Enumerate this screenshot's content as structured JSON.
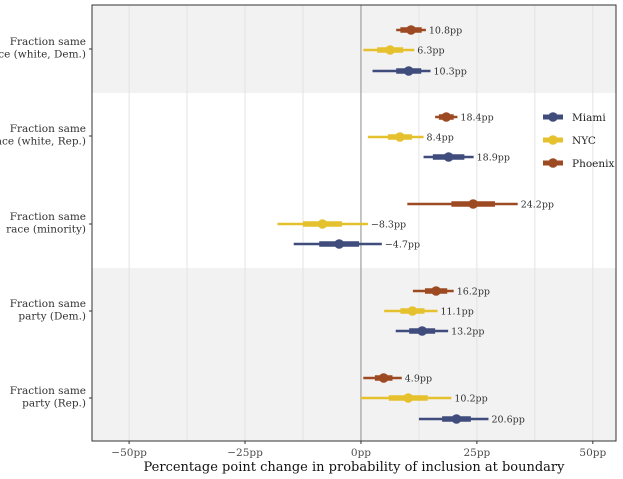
{
  "chart_data": {
    "type": "forest",
    "xlabel": "Percentage point change in probability of inclusion at boundary",
    "xlim": [
      -58,
      55
    ],
    "xticks": [
      {
        "value": -50,
        "label": "−50pp"
      },
      {
        "value": -25,
        "label": "−25pp"
      },
      {
        "value": 0,
        "label": "0pp"
      },
      {
        "value": 25,
        "label": "25pp"
      },
      {
        "value": 50,
        "label": "50pp"
      }
    ],
    "reference_line": 0,
    "series": [
      {
        "name": "Miami",
        "color": "#3f4c7c"
      },
      {
        "name": "NYC",
        "color": "#e6c12e"
      },
      {
        "name": "Phoenix",
        "color": "#9d4a22"
      }
    ],
    "groups": [
      {
        "label_lines": [
          "Fraction same",
          "race (white, Dem.)"
        ],
        "shaded": true,
        "rows": [
          {
            "series": "Phoenix",
            "estimate": 10.8,
            "label": "10.8pp",
            "ci90": [
              8.5,
              13.1
            ],
            "ci95": [
              7.6,
              14.0
            ]
          },
          {
            "series": "NYC",
            "estimate": 6.3,
            "label": "6.3pp",
            "ci90": [
              3.5,
              9.1
            ],
            "ci95": [
              0.5,
              11.5
            ]
          },
          {
            "series": "Miami",
            "estimate": 10.3,
            "label": "10.3pp",
            "ci90": [
              7.6,
              13.0
            ],
            "ci95": [
              2.5,
              15.0
            ]
          }
        ]
      },
      {
        "label_lines": [
          "Fraction same",
          "race (white, Rep.)"
        ],
        "shaded": false,
        "rows": [
          {
            "series": "Phoenix",
            "estimate": 18.4,
            "label": "18.4pp",
            "ci90": [
              16.8,
              20.0
            ],
            "ci95": [
              16.0,
              20.8
            ]
          },
          {
            "series": "NYC",
            "estimate": 8.4,
            "label": "8.4pp",
            "ci90": [
              5.8,
              11.0
            ],
            "ci95": [
              1.5,
              13.5
            ]
          },
          {
            "series": "Miami",
            "estimate": 18.9,
            "label": "18.9pp",
            "ci90": [
              15.5,
              22.3
            ],
            "ci95": [
              13.5,
              24.3
            ]
          }
        ]
      },
      {
        "label_lines": [
          "Fraction same",
          "race (minority)"
        ],
        "shaded": false,
        "rows": [
          {
            "series": "Phoenix",
            "estimate": 24.2,
            "label": "24.2pp",
            "ci90": [
              19.5,
              28.9
            ],
            "ci95": [
              10.0,
              33.8
            ]
          },
          {
            "series": "NYC",
            "estimate": -8.3,
            "label": "−8.3pp",
            "ci90": [
              -12.5,
              -4.1
            ],
            "ci95": [
              -18.0,
              1.5
            ]
          },
          {
            "series": "Miami",
            "estimate": -4.7,
            "label": "−4.7pp",
            "ci90": [
              -9.0,
              -0.4
            ],
            "ci95": [
              -14.5,
              4.5
            ]
          }
        ]
      },
      {
        "label_lines": [
          "Fraction same",
          "party (Dem.)"
        ],
        "shaded": true,
        "rows": [
          {
            "series": "Phoenix",
            "estimate": 16.2,
            "label": "16.2pp",
            "ci90": [
              13.8,
              18.6
            ],
            "ci95": [
              11.2,
              20.0
            ]
          },
          {
            "series": "NYC",
            "estimate": 11.1,
            "label": "11.1pp",
            "ci90": [
              8.5,
              13.7
            ],
            "ci95": [
              5.0,
              16.5
            ]
          },
          {
            "series": "Miami",
            "estimate": 13.2,
            "label": "13.2pp",
            "ci90": [
              10.4,
              16.0
            ],
            "ci95": [
              7.5,
              18.8
            ]
          }
        ]
      },
      {
        "label_lines": [
          "Fraction same",
          "party (Rep.)"
        ],
        "shaded": true,
        "rows": [
          {
            "series": "Phoenix",
            "estimate": 4.9,
            "label": "4.9pp",
            "ci90": [
              3.0,
              6.8
            ],
            "ci95": [
              0.5,
              8.8
            ]
          },
          {
            "series": "NYC",
            "estimate": 10.2,
            "label": "10.2pp",
            "ci90": [
              6.0,
              14.4
            ],
            "ci95": [
              0.0,
              19.5
            ]
          },
          {
            "series": "Miami",
            "estimate": 20.6,
            "label": "20.6pp",
            "ci90": [
              17.5,
              23.7
            ],
            "ci95": [
              12.5,
              27.5
            ]
          }
        ]
      }
    ],
    "legend_position": "right"
  }
}
